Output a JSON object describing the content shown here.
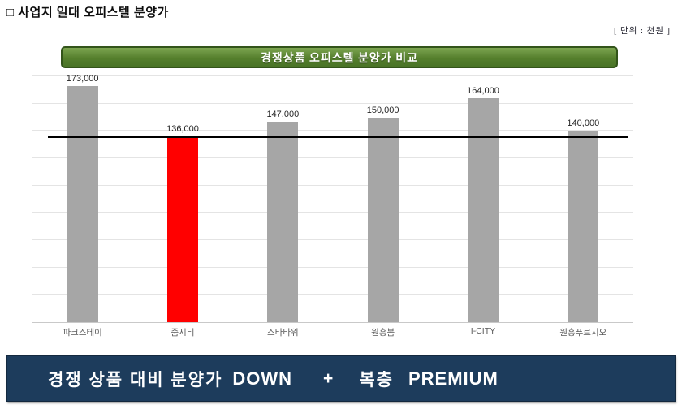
{
  "page_title": "□ 사업지 일대 오피스텔 분양가",
  "unit_label": "[ 단위 : 천원 ]",
  "chart_header": "경쟁상품 오피스텔 분양가 비교",
  "chart_data": {
    "type": "bar",
    "title": "경쟁상품 오피스텔 분양가 비교",
    "categories": [
      "파크스테이",
      "줌시티",
      "스타타워",
      "원흥봄",
      "I-CITY",
      "원흥푸르지오"
    ],
    "values": [
      173000,
      136000,
      147000,
      150000,
      164000,
      140000
    ],
    "value_labels": [
      "173,000",
      "147,000",
      "150,000",
      "164,000",
      "140,000",
      "136,000"
    ],
    "value_labels_by_index": [
      "173,000",
      "136,000",
      "147,000",
      "150,000",
      "164,000",
      "140,000"
    ],
    "highlight_index": 1,
    "bar_color": "#a6a6a6",
    "highlight_color": "#ff0000",
    "reference_line_value": 136000,
    "ylim": [
      0,
      180000
    ],
    "grid_step": 20000,
    "grid": true,
    "legend_position": "none",
    "xlabel": "",
    "ylabel": ""
  },
  "banner": {
    "text_left": "경쟁 상품 대비 분양가",
    "down": "DOWN",
    "plus": "+",
    "middle": "복층",
    "premium": "PREMIUM",
    "bg_color": "#1d3c5c",
    "accent_color": "#e87e22"
  },
  "colors": {
    "header_green": "#557f2d",
    "header_border_green": "#33541a",
    "gridline": "#e4e4e4",
    "bar_gray": "#a6a6a6",
    "bar_red": "#ff0000",
    "reference_line": "#000000"
  }
}
